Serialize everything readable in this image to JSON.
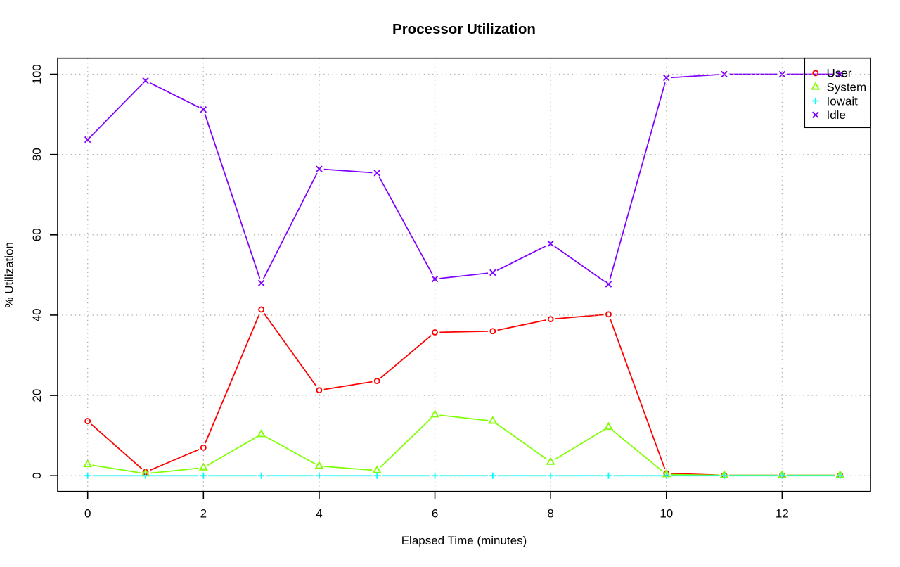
{
  "chart_data": {
    "type": "line",
    "title": "Processor Utilization",
    "xlabel": "Elapsed Time (minutes)",
    "ylabel": "% Utilization",
    "x": [
      0,
      1,
      2,
      3,
      4,
      5,
      6,
      7,
      8,
      9,
      10,
      11,
      12,
      13
    ],
    "series": [
      {
        "name": "User",
        "color": "#FF0000",
        "marker": "circle",
        "values": [
          13.6,
          0.9,
          7.0,
          41.4,
          21.3,
          23.6,
          35.7,
          36.0,
          39.0,
          40.2,
          0.6,
          0.1,
          0.1,
          0.1
        ]
      },
      {
        "name": "System",
        "color": "#80FF00",
        "marker": "triangle",
        "values": [
          2.8,
          0.5,
          2.0,
          10.3,
          2.4,
          1.3,
          15.2,
          13.6,
          3.4,
          12.1,
          0.3,
          0.1,
          0.1,
          0.1
        ]
      },
      {
        "name": "Iowait",
        "color": "#00FFFF",
        "marker": "plus",
        "values": [
          0.0,
          0.0,
          0.0,
          0.0,
          0.0,
          0.0,
          0.0,
          0.0,
          0.0,
          0.0,
          0.0,
          0.0,
          0.0,
          0.0
        ]
      },
      {
        "name": "Idle",
        "color": "#8000FF",
        "marker": "x",
        "values": [
          83.7,
          98.4,
          91.2,
          48.0,
          76.4,
          75.4,
          49.0,
          50.6,
          57.8,
          47.7,
          99.1,
          100.0,
          100.0,
          100.0
        ]
      }
    ],
    "x_ticks": [
      0,
      2,
      4,
      6,
      8,
      10,
      12
    ],
    "y_ticks": [
      0,
      20,
      40,
      60,
      80,
      100
    ],
    "xlim": [
      -0.52,
      13.52
    ],
    "ylim": [
      -4,
      104
    ],
    "grid": "dotted",
    "grid_color": "#b1b1b1",
    "legend_position": "topright",
    "legend": [
      "User",
      "System",
      "Iowait",
      "Idle"
    ]
  }
}
